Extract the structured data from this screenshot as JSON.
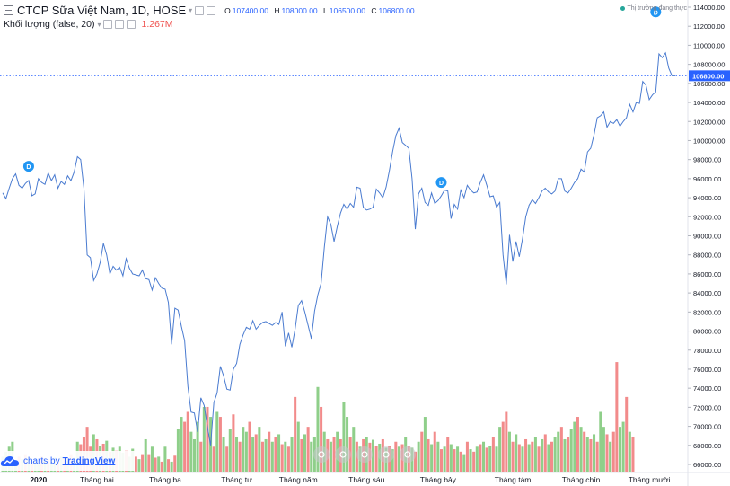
{
  "legend": {
    "symbol_title": "CTCP Sữa Việt Nam, 1D, HOSE",
    "ohlc": [
      {
        "label": "O",
        "value": "107400.00"
      },
      {
        "label": "H",
        "value": "108000.00"
      },
      {
        "label": "L",
        "value": "106500.00"
      },
      {
        "label": "C",
        "value": "106800.00"
      }
    ],
    "volume_title": "Khối lượng (false, 20)",
    "volume_value": "1.267M"
  },
  "status_text": "Thị trường đang thực",
  "watermark": {
    "prefix": "charts by",
    "brand": "TradingView"
  },
  "colors": {
    "price_line": "#4a7bd0",
    "volume_up": "#8fcf8a",
    "volume_down": "#f28b8b",
    "last_price_label": "#2962ff",
    "dividend_marker": "#2196f3"
  },
  "chart_data": {
    "type": "line",
    "title": "CTCP Sữa Việt Nam, 1D, HOSE",
    "ylim": [
      64000,
      115000
    ],
    "y_ticks": [
      66000,
      68000,
      70000,
      72000,
      74000,
      76000,
      78000,
      80000,
      82000,
      84000,
      86000,
      88000,
      90000,
      92000,
      94000,
      96000,
      98000,
      100000,
      102000,
      104000,
      106000,
      108000,
      110000,
      112000,
      114000
    ],
    "y_tick_labels": [
      "66000.00",
      "68000.00",
      "70000.00",
      "72000.00",
      "74000.00",
      "76000.00",
      "78000.00",
      "80000.00",
      "82000.00",
      "84000.00",
      "86000.00",
      "88000.00",
      "90000.00",
      "92000.00",
      "94000.00",
      "96000.00",
      "98000.00",
      "100000.00",
      "102000.00",
      "104000.00",
      "106000.00",
      "108000.00",
      "110000.00",
      "112000.00",
      "114000.00"
    ],
    "x_labels": [
      {
        "label": "2020",
        "index": 11,
        "bold": true
      },
      {
        "label": "Tháng hai",
        "index": 29
      },
      {
        "label": "Tháng ba",
        "index": 50
      },
      {
        "label": "Tháng tư",
        "index": 72
      },
      {
        "label": "Tháng năm",
        "index": 91
      },
      {
        "label": "Tháng sáu",
        "index": 112
      },
      {
        "label": "Tháng bảy",
        "index": 134
      },
      {
        "label": "Tháng tám",
        "index": 157
      },
      {
        "label": "Tháng chín",
        "index": 178
      },
      {
        "label": "Tháng mười",
        "index": 199
      }
    ],
    "last_price": 106800,
    "last_price_label": "106800.00",
    "dividend_markers": [
      {
        "label": "D",
        "index": 8,
        "price": 97300
      },
      {
        "label": "D",
        "index": 135,
        "price": 95600
      },
      {
        "label": "D",
        "index": 201,
        "price": 113500
      }
    ],
    "price": [
      94500,
      93900,
      95000,
      96000,
      96500,
      95300,
      95000,
      95500,
      95800,
      94200,
      94400,
      96000,
      95600,
      95400,
      96600,
      95800,
      96400,
      95000,
      95700,
      95400,
      96300,
      95800,
      96700,
      98300,
      98000,
      95000,
      88000,
      87700,
      85300,
      86000,
      87200,
      89200,
      88000,
      86000,
      86800,
      86400,
      86700,
      85800,
      87600,
      86600,
      86000,
      85900,
      85800,
      86400,
      85500,
      85400,
      84300,
      85600,
      85000,
      84500,
      84400,
      83000,
      78600,
      82400,
      82200,
      80500,
      79000,
      74200,
      71500,
      71400,
      69400,
      73000,
      72200,
      70000,
      68000,
      72500,
      73500,
      76300,
      75300,
      73900,
      73800,
      76000,
      76600,
      78600,
      79600,
      80400,
      80200,
      81100,
      80200,
      80600,
      80900,
      81000,
      80800,
      80600,
      80900,
      80700,
      82000,
      78400,
      79800,
      78300,
      80200,
      82700,
      83200,
      82000,
      80600,
      79200,
      82100,
      83800,
      85000,
      88800,
      92000,
      91200,
      89400,
      91000,
      92400,
      93300,
      92800,
      93400,
      93000,
      95100,
      95000,
      93000,
      92700,
      92800,
      93000,
      94900,
      94500,
      94000,
      95100,
      96800,
      98800,
      100500,
      101300,
      99800,
      99500,
      99200,
      96000,
      90700,
      94400,
      95000,
      93500,
      93200,
      94500,
      93400,
      93700,
      94200,
      94800,
      94700,
      91800,
      93300,
      92800,
      94800,
      94000,
      95300,
      94800,
      94500,
      94600,
      95600,
      96400,
      95300,
      94100,
      94200,
      93000,
      93500,
      88000,
      84900,
      90100,
      87300,
      89400,
      87800,
      89700,
      92000,
      93200,
      93800,
      93400,
      94000,
      94700,
      95000,
      94600,
      94400,
      94700,
      96000,
      96000,
      94700,
      94500,
      95000,
      95600,
      96000,
      97000,
      96700,
      98800,
      99200,
      100600,
      102400,
      102600,
      103000,
      101400,
      102000,
      101800,
      102200,
      101500,
      102000,
      102400,
      103800,
      103000,
      104000,
      103900,
      106200,
      105800,
      104300,
      104800,
      105100,
      109100,
      108700,
      109200,
      107600,
      106800,
      106800
    ],
    "volume_ylim": [
      0,
      2400000
    ],
    "volume": [
      {
        "v": 300000,
        "up": true
      },
      {
        "v": 400000,
        "up": true
      },
      {
        "v": 500000,
        "up": true
      },
      {
        "v": 600000,
        "up": true
      },
      {
        "v": 200000,
        "up": true
      },
      {
        "v": 300000,
        "up": false
      },
      {
        "v": 250000,
        "up": true
      },
      {
        "v": 350000,
        "up": false
      },
      {
        "v": 280000,
        "up": true
      },
      {
        "v": 200000,
        "up": false
      },
      {
        "v": 260000,
        "up": true
      },
      {
        "v": 180000,
        "up": true
      },
      {
        "v": 300000,
        "up": false
      },
      {
        "v": 220000,
        "up": true
      },
      {
        "v": 250000,
        "up": false
      },
      {
        "v": 200000,
        "up": true
      },
      {
        "v": 280000,
        "up": true
      },
      {
        "v": 240000,
        "up": false
      },
      {
        "v": 300000,
        "up": true
      },
      {
        "v": 260000,
        "up": false
      },
      {
        "v": 220000,
        "up": true
      },
      {
        "v": 350000,
        "up": false
      },
      {
        "v": 280000,
        "up": true
      },
      {
        "v": 600000,
        "up": true
      },
      {
        "v": 550000,
        "up": false
      },
      {
        "v": 700000,
        "up": false
      },
      {
        "v": 900000,
        "up": false
      },
      {
        "v": 500000,
        "up": false
      },
      {
        "v": 750000,
        "up": true
      },
      {
        "v": 650000,
        "up": false
      },
      {
        "v": 520000,
        "up": true
      },
      {
        "v": 560000,
        "up": false
      },
      {
        "v": 620000,
        "up": true
      },
      {
        "v": 400000,
        "up": false
      },
      {
        "v": 480000,
        "up": true
      },
      {
        "v": 420000,
        "up": false
      },
      {
        "v": 500000,
        "up": true
      },
      {
        "v": 380000,
        "up": true
      },
      {
        "v": 420000,
        "up": false
      },
      {
        "v": 300000,
        "up": true
      },
      {
        "v": 460000,
        "up": true
      },
      {
        "v": 300000,
        "up": false
      },
      {
        "v": 250000,
        "up": true
      },
      {
        "v": 350000,
        "up": false
      },
      {
        "v": 650000,
        "up": true
      },
      {
        "v": 350000,
        "up": false
      },
      {
        "v": 500000,
        "up": true
      },
      {
        "v": 280000,
        "up": false
      },
      {
        "v": 300000,
        "up": true
      },
      {
        "v": 200000,
        "up": false
      },
      {
        "v": 500000,
        "up": true
      },
      {
        "v": 250000,
        "up": false
      },
      {
        "v": 200000,
        "up": true
      },
      {
        "v": 320000,
        "up": false
      },
      {
        "v": 850000,
        "up": true
      },
      {
        "v": 1100000,
        "up": true
      },
      {
        "v": 1000000,
        "up": false
      },
      {
        "v": 1200000,
        "up": false
      },
      {
        "v": 800000,
        "up": true
      },
      {
        "v": 650000,
        "up": true
      },
      {
        "v": 1000000,
        "up": true
      },
      {
        "v": 600000,
        "up": false
      },
      {
        "v": 1300000,
        "up": true
      },
      {
        "v": 1300000,
        "up": false
      },
      {
        "v": 1100000,
        "up": true
      },
      {
        "v": 500000,
        "up": false
      },
      {
        "v": 1200000,
        "up": true
      },
      {
        "v": 1100000,
        "up": false
      },
      {
        "v": 700000,
        "up": true
      },
      {
        "v": 500000,
        "up": false
      },
      {
        "v": 850000,
        "up": true
      },
      {
        "v": 1150000,
        "up": false
      },
      {
        "v": 700000,
        "up": true
      },
      {
        "v": 600000,
        "up": false
      },
      {
        "v": 900000,
        "up": true
      },
      {
        "v": 800000,
        "up": true
      },
      {
        "v": 1000000,
        "up": false
      },
      {
        "v": 700000,
        "up": true
      },
      {
        "v": 750000,
        "up": false
      },
      {
        "v": 900000,
        "up": true
      },
      {
        "v": 600000,
        "up": false
      },
      {
        "v": 650000,
        "up": true
      },
      {
        "v": 800000,
        "up": false
      },
      {
        "v": 600000,
        "up": true
      },
      {
        "v": 700000,
        "up": false
      },
      {
        "v": 750000,
        "up": true
      },
      {
        "v": 550000,
        "up": false
      },
      {
        "v": 600000,
        "up": true
      },
      {
        "v": 500000,
        "up": false
      },
      {
        "v": 700000,
        "up": true
      },
      {
        "v": 1500000,
        "up": false
      },
      {
        "v": 1000000,
        "up": true
      },
      {
        "v": 650000,
        "up": false
      },
      {
        "v": 750000,
        "up": true
      },
      {
        "v": 900000,
        "up": false
      },
      {
        "v": 600000,
        "up": true
      },
      {
        "v": 700000,
        "up": true
      },
      {
        "v": 1700000,
        "up": true
      },
      {
        "v": 1300000,
        "up": false
      },
      {
        "v": 800000,
        "up": true
      },
      {
        "v": 650000,
        "up": false
      },
      {
        "v": 600000,
        "up": true
      },
      {
        "v": 700000,
        "up": false
      },
      {
        "v": 800000,
        "up": true
      },
      {
        "v": 650000,
        "up": false
      },
      {
        "v": 1400000,
        "up": true
      },
      {
        "v": 1100000,
        "up": true
      },
      {
        "v": 700000,
        "up": false
      },
      {
        "v": 900000,
        "up": true
      },
      {
        "v": 600000,
        "up": false
      },
      {
        "v": 500000,
        "up": true
      },
      {
        "v": 650000,
        "up": false
      },
      {
        "v": 700000,
        "up": true
      },
      {
        "v": 580000,
        "up": false
      },
      {
        "v": 640000,
        "up": true
      },
      {
        "v": 520000,
        "up": false
      },
      {
        "v": 560000,
        "up": true
      },
      {
        "v": 650000,
        "up": false
      },
      {
        "v": 480000,
        "up": true
      },
      {
        "v": 520000,
        "up": false
      },
      {
        "v": 450000,
        "up": true
      },
      {
        "v": 600000,
        "up": false
      },
      {
        "v": 500000,
        "up": true
      },
      {
        "v": 550000,
        "up": false
      },
      {
        "v": 700000,
        "up": true
      },
      {
        "v": 520000,
        "up": false
      },
      {
        "v": 480000,
        "up": true
      },
      {
        "v": 400000,
        "up": false
      },
      {
        "v": 600000,
        "up": true
      },
      {
        "v": 800000,
        "up": false
      },
      {
        "v": 1100000,
        "up": true
      },
      {
        "v": 650000,
        "up": false
      },
      {
        "v": 550000,
        "up": true
      },
      {
        "v": 800000,
        "up": false
      },
      {
        "v": 600000,
        "up": true
      },
      {
        "v": 450000,
        "up": false
      },
      {
        "v": 500000,
        "up": true
      },
      {
        "v": 700000,
        "up": false
      },
      {
        "v": 550000,
        "up": true
      },
      {
        "v": 450000,
        "up": false
      },
      {
        "v": 500000,
        "up": true
      },
      {
        "v": 400000,
        "up": false
      },
      {
        "v": 350000,
        "up": true
      },
      {
        "v": 600000,
        "up": false
      },
      {
        "v": 450000,
        "up": true
      },
      {
        "v": 400000,
        "up": false
      },
      {
        "v": 500000,
        "up": true
      },
      {
        "v": 550000,
        "up": false
      },
      {
        "v": 600000,
        "up": true
      },
      {
        "v": 480000,
        "up": false
      },
      {
        "v": 520000,
        "up": true
      },
      {
        "v": 700000,
        "up": false
      },
      {
        "v": 500000,
        "up": true
      },
      {
        "v": 900000,
        "up": true
      },
      {
        "v": 1000000,
        "up": false
      },
      {
        "v": 1200000,
        "up": false
      },
      {
        "v": 800000,
        "up": true
      },
      {
        "v": 600000,
        "up": false
      },
      {
        "v": 750000,
        "up": true
      },
      {
        "v": 550000,
        "up": false
      },
      {
        "v": 500000,
        "up": true
      },
      {
        "v": 650000,
        "up": false
      },
      {
        "v": 550000,
        "up": true
      },
      {
        "v": 600000,
        "up": false
      },
      {
        "v": 700000,
        "up": true
      },
      {
        "v": 500000,
        "up": false
      },
      {
        "v": 650000,
        "up": true
      },
      {
        "v": 750000,
        "up": false
      },
      {
        "v": 550000,
        "up": true
      },
      {
        "v": 600000,
        "up": false
      },
      {
        "v": 700000,
        "up": true
      },
      {
        "v": 800000,
        "up": true
      },
      {
        "v": 900000,
        "up": false
      },
      {
        "v": 650000,
        "up": true
      },
      {
        "v": 700000,
        "up": false
      },
      {
        "v": 850000,
        "up": true
      },
      {
        "v": 1000000,
        "up": true
      },
      {
        "v": 1100000,
        "up": false
      },
      {
        "v": 900000,
        "up": true
      },
      {
        "v": 800000,
        "up": false
      },
      {
        "v": 700000,
        "up": true
      },
      {
        "v": 650000,
        "up": false
      },
      {
        "v": 750000,
        "up": true
      },
      {
        "v": 600000,
        "up": false
      },
      {
        "v": 1200000,
        "up": true
      },
      {
        "v": 900000,
        "up": true
      },
      {
        "v": 750000,
        "up": false
      },
      {
        "v": 600000,
        "up": true
      },
      {
        "v": 800000,
        "up": false
      },
      {
        "v": 2200000,
        "up": false
      },
      {
        "v": 900000,
        "up": true
      },
      {
        "v": 1000000,
        "up": true
      },
      {
        "v": 1500000,
        "up": false
      },
      {
        "v": 800000,
        "up": true
      },
      {
        "v": 700000,
        "up": false
      }
    ]
  }
}
